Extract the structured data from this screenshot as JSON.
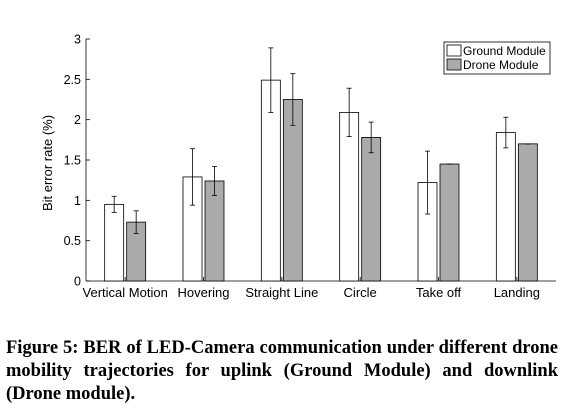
{
  "chart_data": {
    "type": "bar",
    "categories": [
      "Vertical Motion",
      "Hovering",
      "Straight Line",
      "Circle",
      "Take off",
      "Landing"
    ],
    "series": [
      {
        "name": "Ground Module",
        "values": [
          0.95,
          1.29,
          2.49,
          2.09,
          1.22,
          1.84
        ],
        "errors": [
          0.1,
          0.35,
          0.4,
          0.3,
          0.39,
          0.19
        ],
        "color": "#ffffff"
      },
      {
        "name": "Drone Module",
        "values": [
          0.73,
          1.24,
          2.25,
          1.78,
          1.45,
          1.7
        ],
        "errors": [
          0.14,
          0.18,
          0.32,
          0.19,
          0.0,
          0.0
        ],
        "color": "#aaaaaa"
      }
    ],
    "xlabel": "",
    "ylabel": "Bit error rate (%)",
    "ylim": [
      0,
      3
    ],
    "yticks": [
      0,
      0.5,
      1,
      1.5,
      2,
      2.5,
      3
    ],
    "ytick_labels": [
      "0",
      "0.5",
      "1",
      "1.5",
      "2",
      "2.5",
      "3"
    ],
    "grid": false,
    "legend_position": "top-right"
  },
  "caption": "Figure 5: BER of LED-Camera communication under different drone mobility trajectories for uplink (Ground Module) and downlink (Drone module)."
}
